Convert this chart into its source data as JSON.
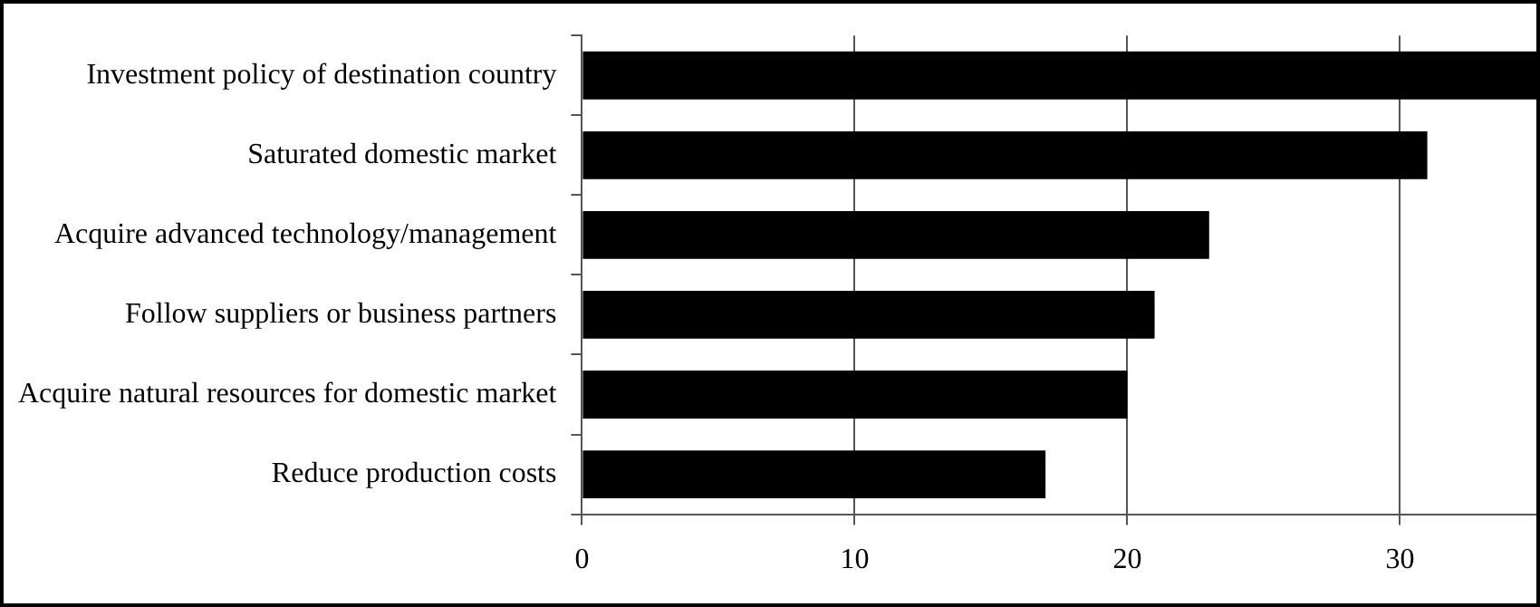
{
  "chart_data": {
    "type": "bar",
    "orientation": "horizontal",
    "categories": [
      "Investment policy of destination country",
      "Saturated domestic market",
      "Acquire advanced technology/management",
      "Follow suppliers or business partners",
      "Acquire natural resources for domestic market",
      "Reduce production costs"
    ],
    "values": [
      35,
      31,
      23,
      21,
      20,
      17
    ],
    "color": "#000000",
    "xlim": [
      0,
      35
    ],
    "xticks": [
      0,
      10,
      20,
      30
    ],
    "grid": "x"
  }
}
